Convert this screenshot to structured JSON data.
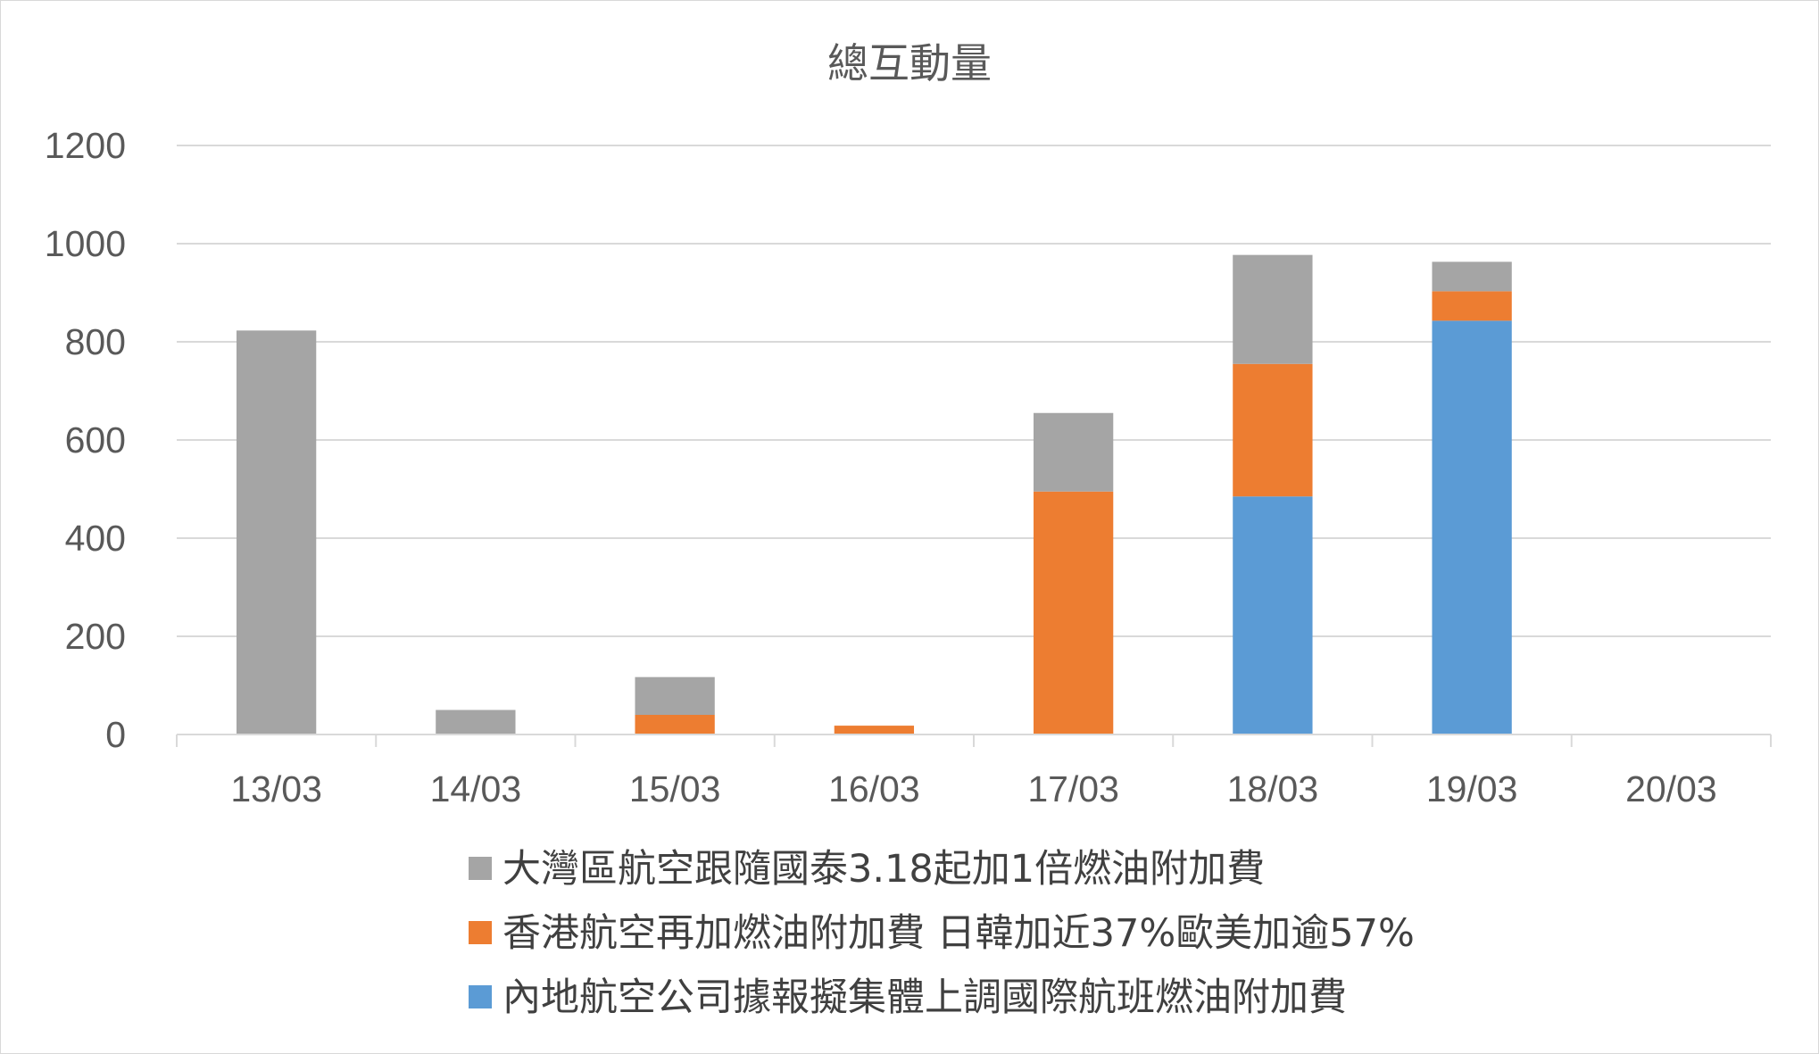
{
  "chart_data": {
    "type": "bar",
    "stacked": true,
    "title": "總互動量",
    "xlabel": "",
    "ylabel": "",
    "categories": [
      "13/03",
      "14/03",
      "15/03",
      "16/03",
      "17/03",
      "18/03",
      "19/03",
      "20/03"
    ],
    "ylim": [
      0,
      1200
    ],
    "yticks": [
      0,
      200,
      400,
      600,
      800,
      1000,
      1200
    ],
    "grid": true,
    "legend_position": "bottom",
    "series": [
      {
        "name": "內地航空公司據報擬集體上調國際航班燃油附加費",
        "color": "#5b9bd5",
        "values": [
          0,
          0,
          0,
          0,
          0,
          485,
          843,
          0
        ]
      },
      {
        "name": "香港航空再加燃油附加費 日韓加近37%歐美加逾57%",
        "color": "#ed7d31",
        "values": [
          0,
          0,
          40,
          18,
          495,
          270,
          60,
          0
        ]
      },
      {
        "name": "大灣區航空跟隨國泰3.18起加1倍燃油附加費",
        "color": "#a5a5a5",
        "values": [
          823,
          50,
          77,
          0,
          160,
          222,
          60,
          0
        ]
      }
    ],
    "legend_order": [
      2,
      1,
      0
    ]
  }
}
